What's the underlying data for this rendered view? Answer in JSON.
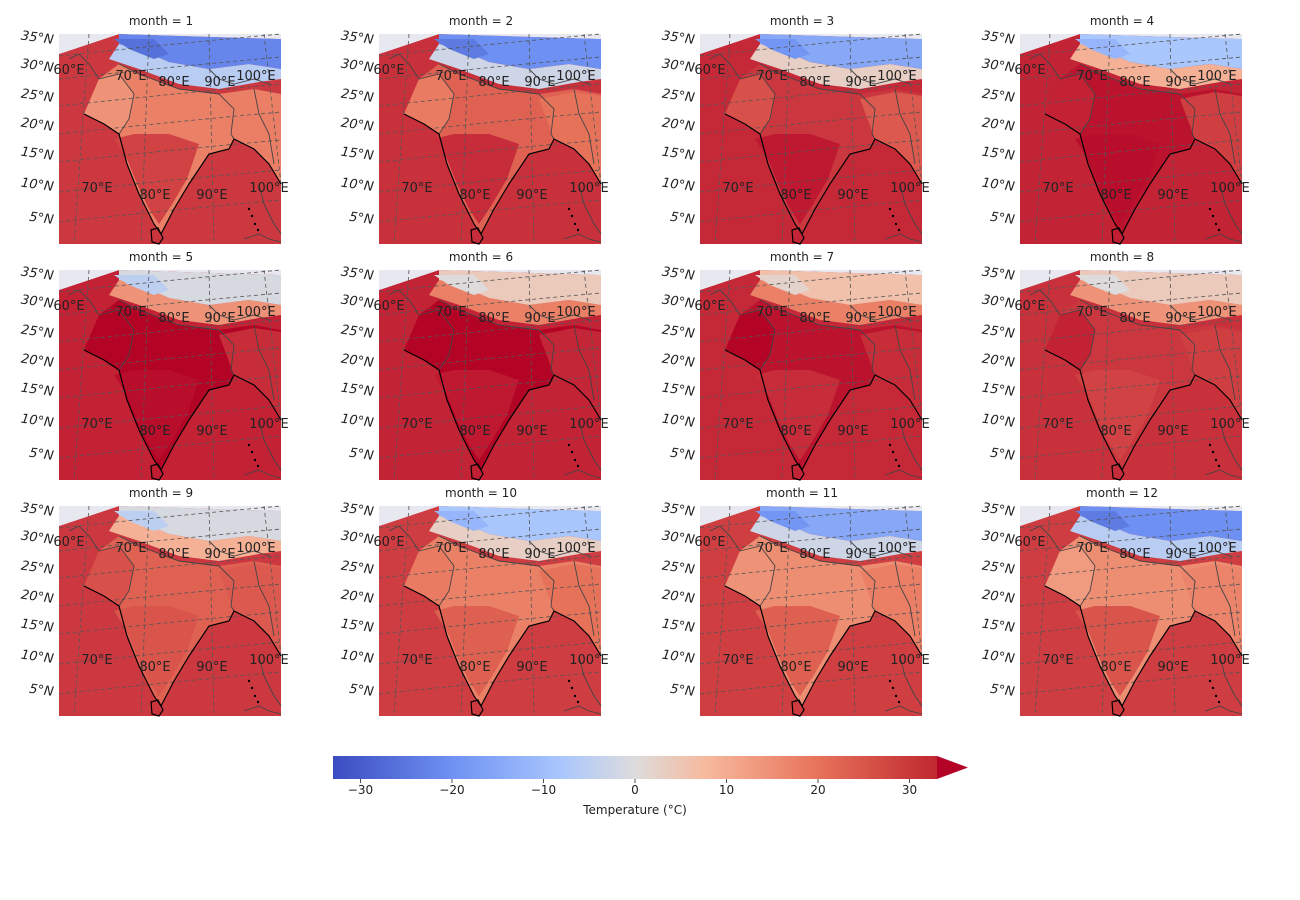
{
  "panels": [
    {
      "title": "month = 1",
      "month": 1
    },
    {
      "title": "month = 2",
      "month": 2
    },
    {
      "title": "month = 3",
      "month": 3
    },
    {
      "title": "month = 4",
      "month": 4
    },
    {
      "title": "month = 5",
      "month": 5
    },
    {
      "title": "month = 6",
      "month": 6
    },
    {
      "title": "month = 7",
      "month": 7
    },
    {
      "title": "month = 8",
      "month": 8
    },
    {
      "title": "month = 9",
      "month": 9
    },
    {
      "title": "month = 10",
      "month": 10
    },
    {
      "title": "month = 11",
      "month": 11
    },
    {
      "title": "month = 12",
      "month": 12
    }
  ],
  "lat_labels": [
    "35°N",
    "30°N",
    "25°N",
    "20°N",
    "15°N",
    "10°N",
    "5°N"
  ],
  "lon_labels_top": [
    "60°E",
    "70°E",
    "80°E",
    "90°E",
    "100°E"
  ],
  "lon_labels_bottom": [
    "70°E",
    "80°E",
    "90°E",
    "100°E"
  ],
  "colorbar": {
    "label": "Temperature (°C)",
    "ticks": [
      "−30",
      "−20",
      "−10",
      "0",
      "10",
      "20",
      "30"
    ],
    "tick_values": [
      -30,
      -20,
      -10,
      0,
      10,
      20,
      30
    ],
    "range": [
      -33,
      33
    ],
    "extend": "max",
    "colormap": "coolwarm"
  },
  "colors": {
    "cold": "#3b4cc0",
    "neutral": "#dddcdc",
    "warm": "#b40426",
    "ocean_background": "#e8e8f0"
  }
}
